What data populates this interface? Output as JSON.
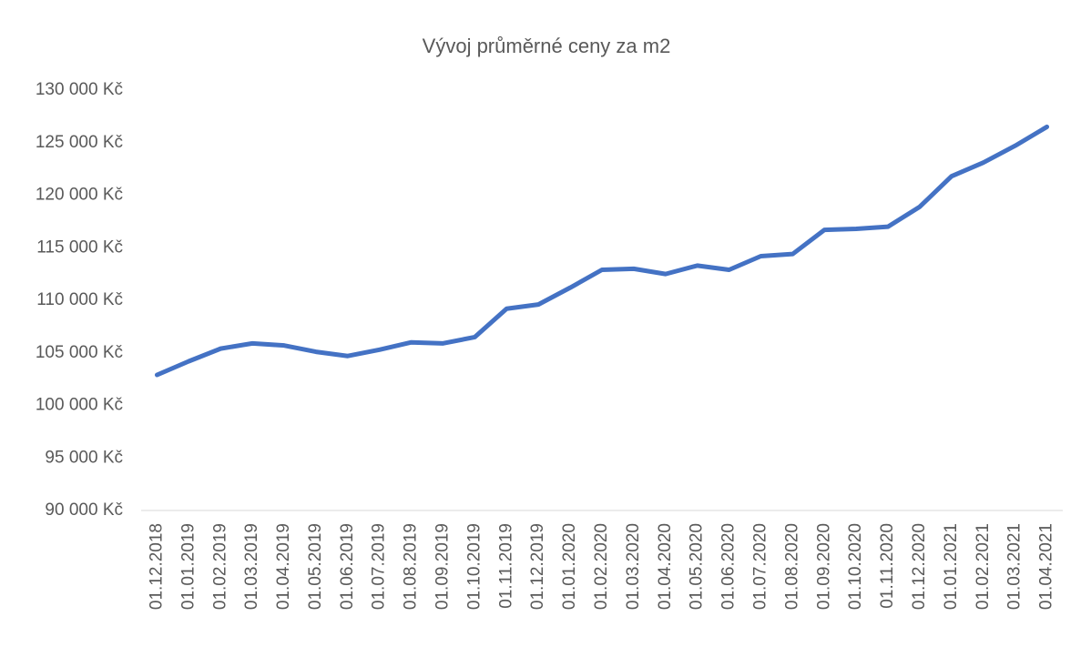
{
  "chart_data": {
    "type": "line",
    "title": "Vývoj průměrné ceny za m2",
    "categories": [
      "01.12.2018",
      "01.01.2019",
      "01.02.2019",
      "01.03.2019",
      "01.04.2019",
      "01.05.2019",
      "01.06.2019",
      "01.07.2019",
      "01.08.2019",
      "01.09.2019",
      "01.10.2019",
      "01.11.2019",
      "01.12.2019",
      "01.01.2020",
      "01.02.2020",
      "01.03.2020",
      "01.04.2020",
      "01.05.2020",
      "01.06.2020",
      "01.07.2020",
      "01.08.2020",
      "01.09.2020",
      "01.10.2020",
      "01.11.2020",
      "01.12.2020",
      "01.01.2021",
      "01.02.2021",
      "01.03.2021",
      "01.04.2021"
    ],
    "values": [
      102900,
      104200,
      105400,
      105900,
      105700,
      105100,
      104700,
      105300,
      106000,
      105900,
      106500,
      109200,
      109600,
      111200,
      112900,
      113000,
      112500,
      113300,
      112900,
      114200,
      114400,
      116700,
      116800,
      117000,
      118900,
      121800,
      123100,
      124700,
      126500
    ],
    "color": "#4472c4",
    "ylim": [
      90000,
      130000
    ],
    "yticks": [
      {
        "value": 90000,
        "label": "90 000 Kč"
      },
      {
        "value": 95000,
        "label": "95 000 Kč"
      },
      {
        "value": 100000,
        "label": "100 000 Kč"
      },
      {
        "value": 105000,
        "label": "105 000 Kč"
      },
      {
        "value": 110000,
        "label": "110 000 Kč"
      },
      {
        "value": 115000,
        "label": "115 000 Kč"
      },
      {
        "value": 120000,
        "label": "120 000 Kč"
      },
      {
        "value": 125000,
        "label": "125 000 Kč"
      },
      {
        "value": 130000,
        "label": "130 000 Kč"
      }
    ],
    "grid": false
  }
}
